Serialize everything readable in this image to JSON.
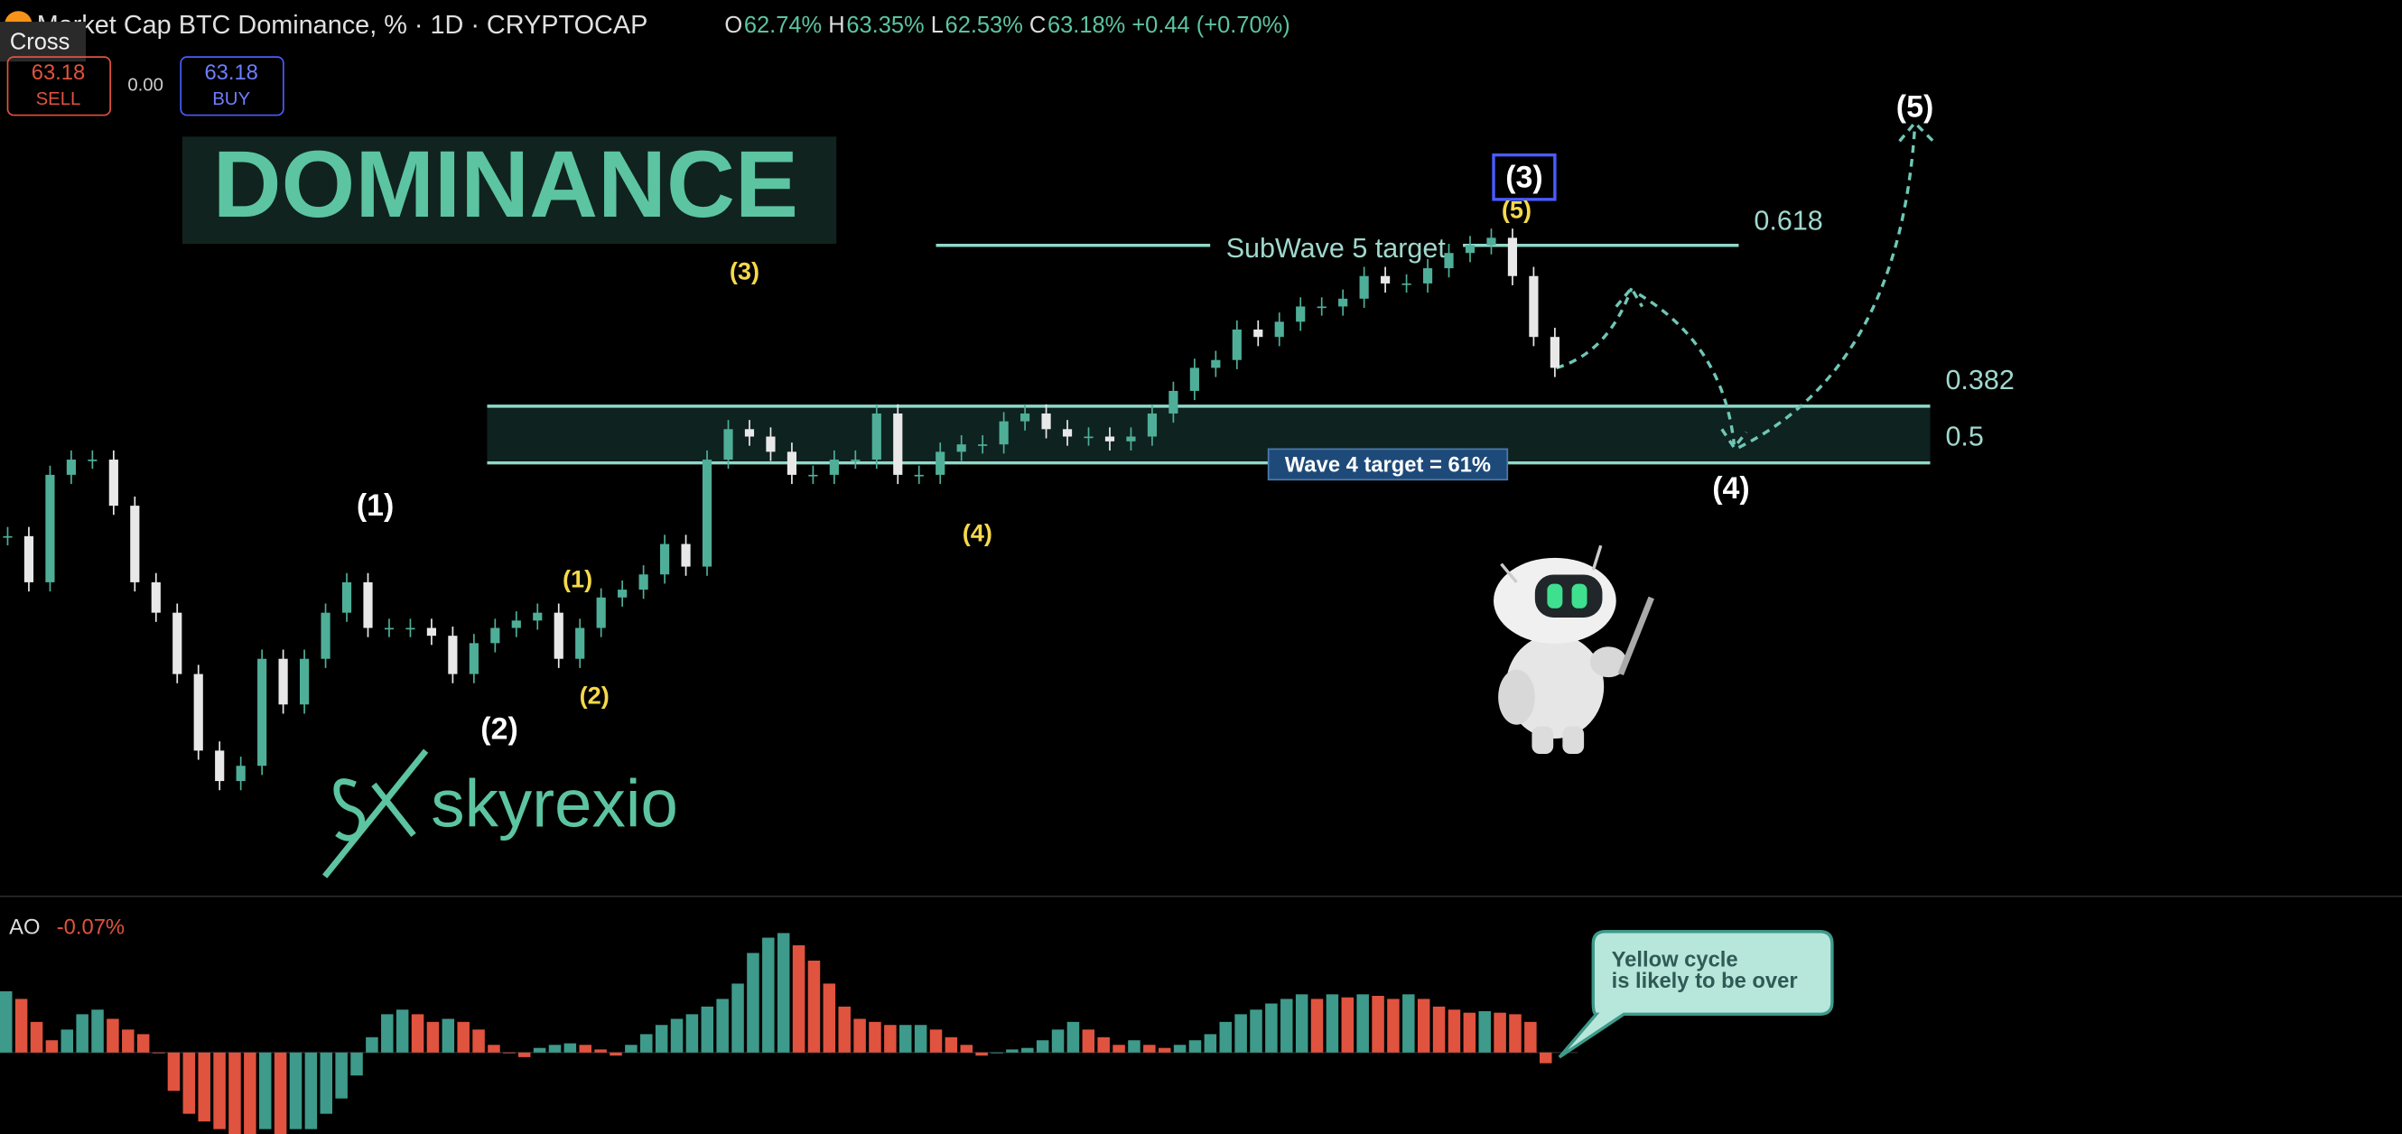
{
  "header": {
    "title": "Market Cap BTC Dominance, % · 1D · CRYPTOCAP",
    "ohlc": [
      {
        "key": "O",
        "value": "62.74%"
      },
      {
        "key": "H",
        "value": "63.35%"
      },
      {
        "key": "L",
        "value": "62.53%"
      },
      {
        "key": "C",
        "value": "63.18%"
      }
    ],
    "change": "+0.44 (+0.70%)",
    "tooltip": "Cross"
  },
  "trade": {
    "sell_price": "63.18",
    "sell_label": "SELL",
    "spread": "0.00",
    "buy_price": "63.18",
    "buy_label": "BUY"
  },
  "banner": "DOMINANCE",
  "logo": "skyrexio",
  "annotations": {
    "subwave_target": "SubWave 5 target",
    "wave4_target": "Wave 4 target = 61%",
    "fib_618": "0.618",
    "fib_382": "0.382",
    "fib_5": "0.5",
    "waves_white": [
      "(1)",
      "(2)",
      "(3)",
      "(4)",
      "(5)"
    ],
    "waves_yellow": [
      "(3)",
      "(1)",
      "(2)",
      "(4)",
      "(5)"
    ],
    "callout": [
      "Yellow cycle",
      "is likely to be over"
    ]
  },
  "chart_data": [
    {
      "type": "candlestick",
      "name": "price",
      "color_up": "#4fae98",
      "color_down": "#e8e8e8",
      "ylim": [
        51,
        71.6
      ],
      "values": [
        59.28,
        58.22,
        60.69,
        61.04,
        61.04,
        59.98,
        58.22,
        57.52,
        56.11,
        54.35,
        53.65,
        54.0,
        56.46,
        55.41,
        56.46,
        57.52,
        58.22,
        57.17,
        57.17,
        57.17,
        56.99,
        56.11,
        56.82,
        57.17,
        57.34,
        57.52,
        56.46,
        57.17,
        57.87,
        58.05,
        58.4,
        59.1,
        58.58,
        61.04,
        61.74,
        61.57,
        61.22,
        60.69,
        60.69,
        61.04,
        61.04,
        62.1,
        60.69,
        60.69,
        61.22,
        61.39,
        61.39,
        61.92,
        62.1,
        61.74,
        61.57,
        61.57,
        61.46,
        61.57,
        62.1,
        62.62,
        63.15,
        63.33,
        64.03,
        63.86,
        64.21,
        64.56,
        64.56,
        64.74,
        65.26,
        65.09,
        65.09,
        65.44,
        65.79,
        65.97,
        66.14,
        65.26,
        63.86,
        63.15
      ]
    },
    {
      "type": "histogram",
      "name": "AO",
      "title": "AO",
      "value_label": "-0.07%",
      "color_up": "#3e9a8a",
      "color_down": "#e0533f",
      "ylim": [
        -0.53,
        0.92
      ],
      "values": [
        0.4,
        0.35,
        0.2,
        0.08,
        0.15,
        0.25,
        0.28,
        0.22,
        0.15,
        0.12,
        0,
        -0.25,
        -0.4,
        -0.45,
        -0.5,
        -0.55,
        -0.6,
        -0.5,
        -0.55,
        -0.5,
        -0.5,
        -0.4,
        -0.3,
        -0.15,
        0.1,
        0.25,
        0.28,
        0.25,
        0.2,
        0.22,
        0.2,
        0.15,
        0.05,
        0,
        -0.03,
        0.03,
        0.05,
        0.06,
        0.05,
        0.02,
        -0.02,
        0.05,
        0.12,
        0.18,
        0.22,
        0.25,
        0.3,
        0.35,
        0.45,
        0.65,
        0.75,
        0.78,
        0.7,
        0.6,
        0.45,
        0.3,
        0.22,
        0.2,
        0.18,
        0.18,
        0.18,
        0.15,
        0.1,
        0.05,
        -0.02,
        0,
        0.02,
        0.03,
        0.08,
        0.15,
        0.2,
        0.15,
        0.1,
        0.05,
        0.08,
        0.05,
        0.03,
        0.05,
        0.08,
        0.12,
        0.2,
        0.25,
        0.28,
        0.32,
        0.35,
        0.38,
        0.35,
        0.38,
        0.36,
        0.38,
        0.37,
        0.35,
        0.38,
        0.35,
        0.3,
        0.28,
        0.26,
        0.27,
        0.26,
        0.25,
        0.2,
        -0.07
      ]
    }
  ]
}
